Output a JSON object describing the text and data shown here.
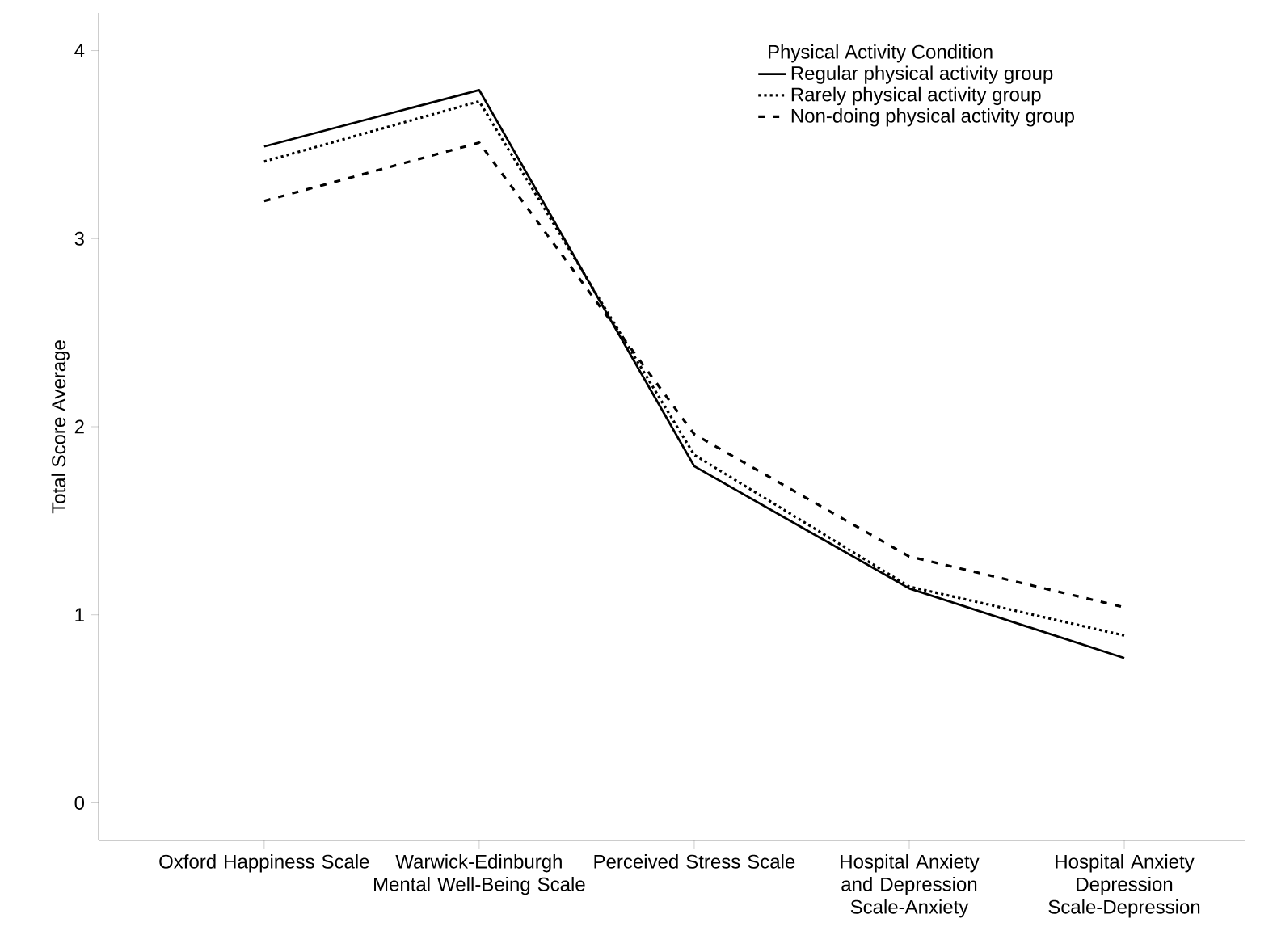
{
  "chart_data": {
    "type": "line",
    "ylabel": "Total Score Average",
    "legend_title": "Physical Activity Condition",
    "categories": [
      "Oxford Happiness Scale",
      "Warwick-Edinburgh Mental Well-Being Scale",
      "Perceived Stress Scale",
      "Hospital Anxiety and Depression Scale-Anxiety",
      "Hospital Anxiety Depression Scale-Depression"
    ],
    "series": [
      {
        "name": "Regular physical activity group",
        "color": "#000000",
        "line_style": "solid",
        "values": [
          3.49,
          3.79,
          1.79,
          1.14,
          0.77
        ]
      },
      {
        "name": "Rarely physical activity group",
        "color": "#000000",
        "line_style": "dotted",
        "values": [
          3.41,
          3.73,
          1.85,
          1.15,
          0.89
        ]
      },
      {
        "name": "Non-doing physical activity group",
        "color": "#000000",
        "line_style": "dashed",
        "values": [
          3.2,
          3.51,
          1.96,
          1.31,
          1.04
        ]
      }
    ],
    "ylim": [
      -0.2,
      4.2
    ],
    "yticks": [
      0,
      1,
      2,
      3,
      4
    ],
    "grid": false,
    "legend": "top right",
    "marker": "none"
  }
}
